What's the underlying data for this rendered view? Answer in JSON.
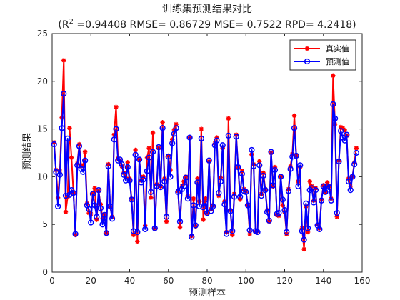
{
  "chart_data": {
    "type": "line",
    "title": "训练集预测结果对比",
    "subtitle": {
      "prefix": "(R",
      "sup": "2",
      "rest": " =0.94408 RMSE= 0.86729 MSE= 0.7522 RPD= 4.2418)"
    },
    "xlabel": "预测样本",
    "ylabel": "预测结果",
    "xlim": [
      0,
      160
    ],
    "ylim": [
      0,
      25
    ],
    "xticks": [
      0,
      20,
      40,
      60,
      80,
      100,
      120,
      140,
      160
    ],
    "yticks": [
      0,
      5,
      10,
      15,
      20,
      25
    ],
    "legend": {
      "position": "top-right"
    },
    "series": [
      {
        "name": "真实值",
        "color": "#ff0000",
        "marker": "asterisk",
        "values": [
          13.6,
          10.7,
          7.8,
          10.6,
          16.2,
          22.2,
          6.3,
          7.9,
          15.1,
          12.0,
          8.3,
          3.9,
          11.4,
          13.4,
          11.1,
          11.2,
          12.6,
          7.2,
          6.2,
          6.1,
          8.3,
          8.8,
          5.5,
          8.5,
          7.1,
          5.6,
          6.0,
          4.1,
          11.3,
          6.8,
          5.8,
          14.4,
          17.3,
          11.9,
          11.7,
          11.1,
          10.4,
          9.9,
          11.5,
          9.8,
          7.7,
          3.9,
          12.8,
          3.2,
          11.8,
          9.6,
          10.0,
          4.9,
          12.0,
          13.0,
          7.8,
          14.6,
          4.6,
          9.2,
          13.0,
          9.0,
          15.7,
          9.8,
          5.3,
          12.2,
          10.7,
          13.9,
          14.9,
          15.5,
          8.5,
          4.7,
          9.0,
          9.5,
          10.0,
          8.0,
          14.1,
          3.8,
          7.7,
          4.8,
          9.8,
          7.4,
          15.0,
          5.5,
          7.7,
          6.2,
          11.6,
          6.6,
          7.0,
          13.5,
          14.1,
          8.0,
          9.9,
          13.0,
          7.4,
          4.2,
          16.1,
          6.5,
          3.9,
          8.2,
          14.4,
          11.0,
          7.6,
          10.6,
          8.7,
          8.5,
          7.0,
          4.0,
          12.3,
          11.3,
          4.2,
          4.3,
          11.6,
          8.2,
          10.4,
          8.7,
          6.5,
          5.3,
          12.5,
          9.0,
          11.0,
          6.0,
          5.9,
          10.0,
          7.0,
          6.3,
          4.0,
          8.7,
          11.1,
          12.4,
          16.4,
          12.2,
          9.5,
          11.0,
          4.6,
          2.4,
          6.9,
          4.2,
          9.5,
          9.0,
          7.5,
          8.8,
          5.0,
          4.6,
          7.6,
          9.1,
          8.4,
          9.4,
          9.0,
          7.7,
          20.6,
          15.5,
          5.8,
          11.7,
          15.2,
          15.1,
          14.9,
          14.3,
          9.8,
          9.0,
          10.0,
          11.5,
          13.0
        ]
      },
      {
        "name": "预测值",
        "color": "#0000ff",
        "marker": "circle",
        "values": [
          13.4,
          10.5,
          6.9,
          10.2,
          15.1,
          18.7,
          8.0,
          14.0,
          8.1,
          8.6,
          8.3,
          4.0,
          11.2,
          13.2,
          10.8,
          10.5,
          11.7,
          7.0,
          6.6,
          5.2,
          8.2,
          7.0,
          5.8,
          8.6,
          6.7,
          5.0,
          6.0,
          4.1,
          11.1,
          6.9,
          5.6,
          13.9,
          15.0,
          11.7,
          11.8,
          11.3,
          10.2,
          9.6,
          11.0,
          9.6,
          7.6,
          4.3,
          12.3,
          4.2,
          11.8,
          9.4,
          9.7,
          4.5,
          10.6,
          12.0,
          8.4,
          12.6,
          4.6,
          9.0,
          13.1,
          8.9,
          15.1,
          9.5,
          5.8,
          12.1,
          10.0,
          13.5,
          14.5,
          15.1,
          8.4,
          5.3,
          8.7,
          9.0,
          9.9,
          7.7,
          14.1,
          3.7,
          7.0,
          4.9,
          9.4,
          6.9,
          14.0,
          6.8,
          7.2,
          6.2,
          11.7,
          6.4,
          6.9,
          13.3,
          13.8,
          8.3,
          9.5,
          13.3,
          7.1,
          4.0,
          14.3,
          6.4,
          4.3,
          7.9,
          14.2,
          11.0,
          7.9,
          10.3,
          8.5,
          8.4,
          7.0,
          4.4,
          12.8,
          11.1,
          4.3,
          4.2,
          11.2,
          8.0,
          10.1,
          8.6,
          6.3,
          5.4,
          12.6,
          9.1,
          10.7,
          6.1,
          6.2,
          10.0,
          7.6,
          6.5,
          4.2,
          8.5,
          10.8,
          12.1,
          15.1,
          12.2,
          9.0,
          11.2,
          4.3,
          3.4,
          7.2,
          4.6,
          8.6,
          8.8,
          7.3,
          8.6,
          4.9,
          4.5,
          7.5,
          9.0,
          8.4,
          9.0,
          8.9,
          7.5,
          17.6,
          16.1,
          6.2,
          11.6,
          14.8,
          14.1,
          13.8,
          14.4,
          9.5,
          8.6,
          10.0,
          11.3,
          12.5
        ]
      }
    ]
  }
}
